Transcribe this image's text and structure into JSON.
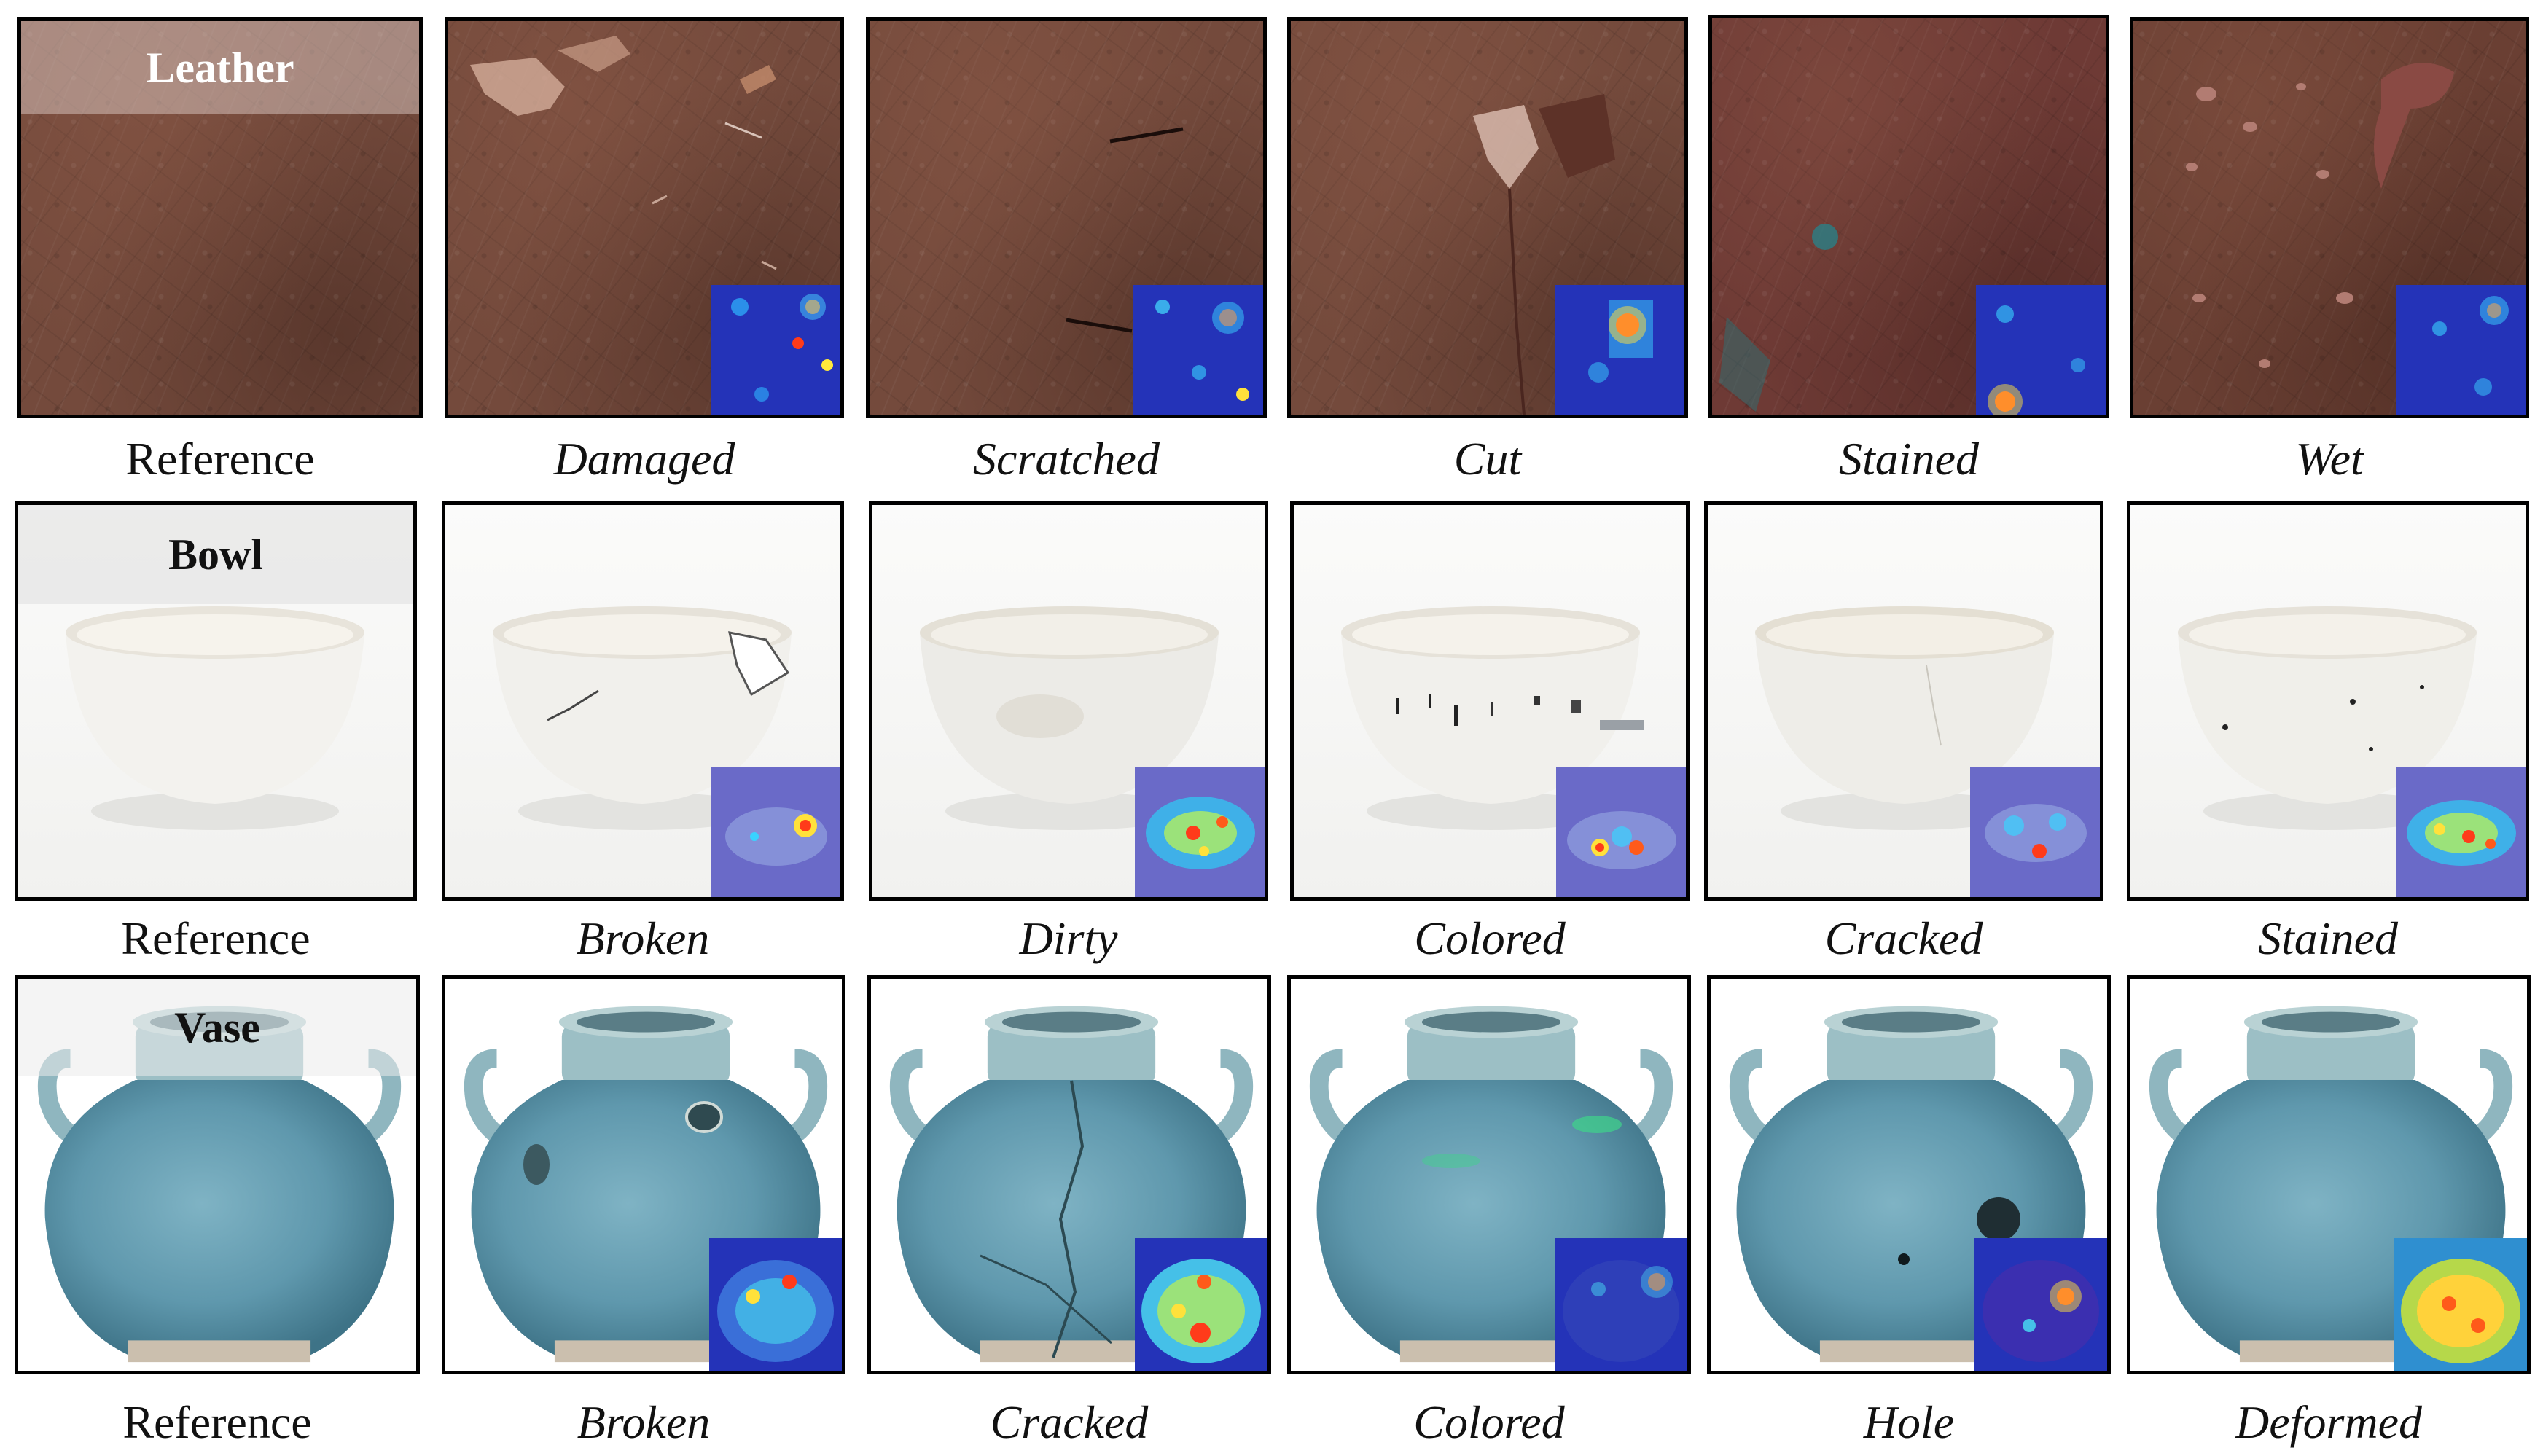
{
  "rows": [
    {
      "category": "Leather",
      "reference_label": "Reference",
      "defects": [
        "Damaged",
        "Scratched",
        "Cut",
        "Stained",
        "Wet"
      ]
    },
    {
      "category": "Bowl",
      "reference_label": "Reference",
      "defects": [
        "Broken",
        "Dirty",
        "Colored",
        "Cracked",
        "Stained"
      ]
    },
    {
      "category": "Vase",
      "reference_label": "Reference",
      "defects": [
        "Broken",
        "Cracked",
        "Colored",
        "Hole",
        "Deformed"
      ]
    }
  ]
}
